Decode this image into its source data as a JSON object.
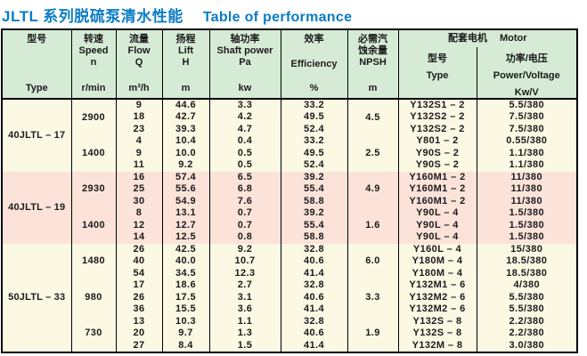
{
  "title": {
    "zh": "JLTL 系列脱硫泵清水性能",
    "en": "Table of performance"
  },
  "colors": {
    "title_blue": "#0a7cc6",
    "header_bg": "#d6ebd6",
    "band_cream": "#fbf8e4",
    "band_pink": "#fbe3d9",
    "border": "#000000"
  },
  "header": {
    "type": {
      "zh": "型号",
      "en": "Type"
    },
    "speed": {
      "zh": "转速",
      "en": "Speed",
      "symbol": "n",
      "unit": "r/min"
    },
    "flow": {
      "zh": "流量",
      "en": "Flow",
      "symbol": "Q",
      "unit": "m³/h"
    },
    "lift": {
      "zh": "扬程",
      "en": "Lift",
      "symbol": "H",
      "unit": "m"
    },
    "shaft_power": {
      "zh": "轴功率",
      "en": "Shaft power",
      "symbol": "Pa",
      "unit": "kw"
    },
    "efficiency": {
      "zh": "效率",
      "en": "Efficiency",
      "unit": "%"
    },
    "npsh": {
      "zh_line1": "必需汽",
      "zh_line2": "蚀余量",
      "en": "NPSH",
      "unit": "m"
    },
    "motor": {
      "zh": "配套电机",
      "en": "Motor",
      "type": {
        "zh": "型号",
        "en": "Type"
      },
      "power_voltage": {
        "zh": "功率/电压",
        "en": "Power/Voltage",
        "unit": "Kw/V"
      }
    }
  },
  "groups": [
    {
      "type": "40JLTL – 17",
      "band": "cream",
      "blocks": [
        {
          "speed": "2900",
          "npsh": "4.5",
          "rows": [
            {
              "flow": "9",
              "lift": "44.6",
              "power": "3.3",
              "eff": "33.2",
              "motor": "Y132S1 – 2",
              "pv": "5.5/380"
            },
            {
              "flow": "18",
              "lift": "42.7",
              "power": "4.2",
              "eff": "49.5",
              "motor": "Y132S2 – 2",
              "pv": "7.5/380"
            },
            {
              "flow": "23",
              "lift": "39.3",
              "power": "4.7",
              "eff": "52.4",
              "motor": "Y132S2 – 2",
              "pv": "7.5/380"
            }
          ]
        },
        {
          "speed": "1400",
          "npsh": "2.5",
          "rows": [
            {
              "flow": "4",
              "lift": "10.4",
              "power": "0.4",
              "eff": "33.2",
              "motor": "Y801 – 2",
              "pv": "0.55/380"
            },
            {
              "flow": "9",
              "lift": "10.0",
              "power": "0.5",
              "eff": "49.5",
              "motor": "Y90S – 2",
              "pv": "1.1/380"
            },
            {
              "flow": "11",
              "lift": "9.2",
              "power": "0.5",
              "eff": "52.4",
              "motor": "Y90S – 2",
              "pv": "1.1/380"
            }
          ]
        }
      ]
    },
    {
      "type": "40JLTL – 19",
      "band": "pink",
      "blocks": [
        {
          "speed": "2930",
          "npsh": "4.9",
          "rows": [
            {
              "flow": "16",
              "lift": "57.4",
              "power": "6.5",
              "eff": "39.2",
              "motor": "Y160M1 – 2",
              "pv": "11/380"
            },
            {
              "flow": "25",
              "lift": "55.6",
              "power": "6.8",
              "eff": "55.4",
              "motor": "Y160M1 – 2",
              "pv": "11/380"
            },
            {
              "flow": "30",
              "lift": "54.9",
              "power": "7.6",
              "eff": "58.8",
              "motor": "Y160M1 – 2",
              "pv": "11/380"
            }
          ]
        },
        {
          "speed": "1400",
          "npsh": "1.6",
          "rows": [
            {
              "flow": "8",
              "lift": "13.1",
              "power": "0.7",
              "eff": "39.2",
              "motor": "Y90L – 4",
              "pv": "1.5/380"
            },
            {
              "flow": "12",
              "lift": "12.7",
              "power": "0.7",
              "eff": "55.4",
              "motor": "Y90L – 4",
              "pv": "1.5/380"
            },
            {
              "flow": "14",
              "lift": "12.5",
              "power": "0.8",
              "eff": "58.8",
              "motor": "Y90L – 4",
              "pv": "1.5/380"
            }
          ]
        }
      ]
    },
    {
      "type": "50JLTL – 33",
      "band": "cream",
      "blocks": [
        {
          "speed": "1480",
          "npsh": "6.0",
          "rows": [
            {
              "flow": "26",
              "lift": "42.5",
              "power": "9.2",
              "eff": "32.8",
              "motor": "Y160L – 4",
              "pv": "15/380"
            },
            {
              "flow": "40",
              "lift": "40.0",
              "power": "10.7",
              "eff": "40.6",
              "motor": "Y180M – 4",
              "pv": "18.5/380"
            },
            {
              "flow": "54",
              "lift": "34.5",
              "power": "12.3",
              "eff": "41.4",
              "motor": "Y180M – 4",
              "pv": "18.5/380"
            }
          ]
        },
        {
          "speed": "980",
          "npsh": "3.3",
          "rows": [
            {
              "flow": "17",
              "lift": "18.6",
              "power": "2.7",
              "eff": "32.8",
              "motor": "Y132M1 – 6",
              "pv": "4/380"
            },
            {
              "flow": "26",
              "lift": "17.5",
              "power": "3.1",
              "eff": "40.6",
              "motor": "Y132M2 – 6",
              "pv": "5.5/380"
            },
            {
              "flow": "36",
              "lift": "15.5",
              "power": "3.6",
              "eff": "41.4",
              "motor": "Y132M2 – 6",
              "pv": "5.5/380"
            }
          ]
        },
        {
          "speed": "730",
          "npsh": "1.9",
          "rows": [
            {
              "flow": "13",
              "lift": "10.3",
              "power": "1.1",
              "eff": "32.8",
              "motor": "Y132S – 8",
              "pv": "2.2/380"
            },
            {
              "flow": "20",
              "lift": "9.7",
              "power": "1.3",
              "eff": "40.6",
              "motor": "Y132S – 8",
              "pv": "2.2/380"
            },
            {
              "flow": "27",
              "lift": "8.4",
              "power": "1.5",
              "eff": "41.4",
              "motor": "Y132M – 8",
              "pv": "3.0/380"
            }
          ]
        }
      ]
    }
  ]
}
